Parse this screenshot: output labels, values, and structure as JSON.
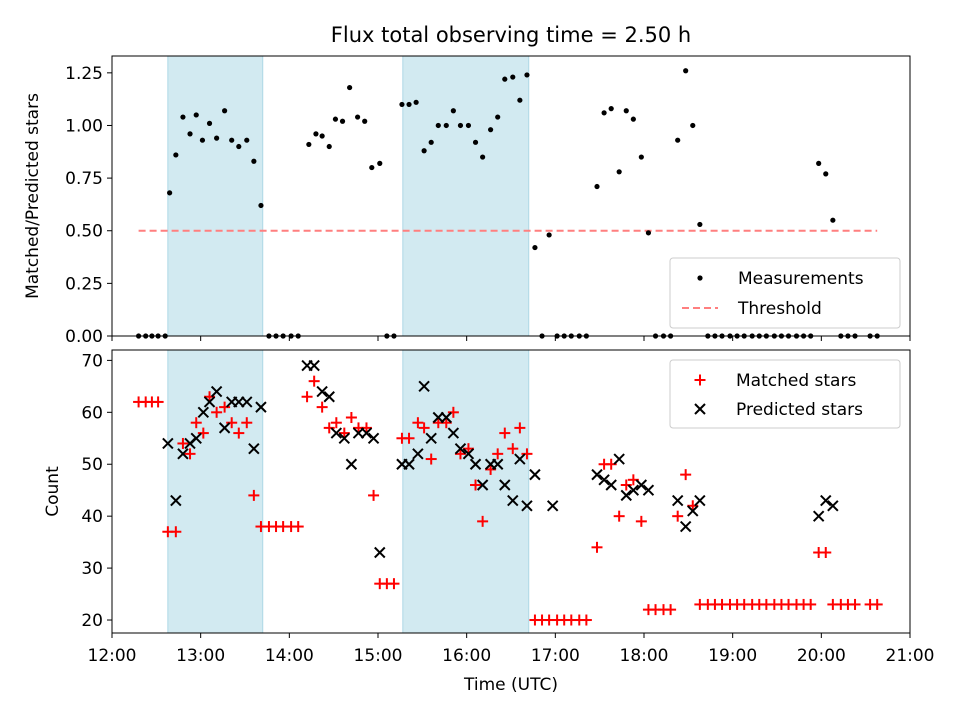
{
  "title": "Flux total observing time = 2.50 h",
  "colors": {
    "measurement": "#000000",
    "threshold": "#ff7f7f",
    "matched": "#ff0000",
    "predicted": "#000000",
    "shade": "#add8e6"
  },
  "chart_data": [
    {
      "type": "scatter",
      "ylabel": "Matched/Predicted stars",
      "xlim": [
        12.0,
        21.0
      ],
      "ylim": [
        0,
        1.33
      ],
      "yticks": [
        0,
        0.25,
        0.5,
        0.75,
        1.0,
        1.25
      ],
      "ytick_labels": [
        "0.00",
        "0.25",
        "0.50",
        "0.75",
        "1.00",
        "1.25"
      ],
      "grid": false,
      "legend_position": "lower-right",
      "shaded_spans": [
        [
          12.63,
          13.7
        ],
        [
          15.28,
          16.7
        ]
      ],
      "series": [
        {
          "name": "Measurements",
          "marker": "dot",
          "points": [
            [
              12.3,
              0
            ],
            [
              12.38,
              0
            ],
            [
              12.45,
              0
            ],
            [
              12.52,
              0
            ],
            [
              12.6,
              0
            ],
            [
              12.65,
              0.68
            ],
            [
              12.72,
              0.86
            ],
            [
              12.8,
              1.04
            ],
            [
              12.88,
              0.96
            ],
            [
              12.95,
              1.05
            ],
            [
              13.02,
              0.93
            ],
            [
              13.1,
              1.01
            ],
            [
              13.18,
              0.94
            ],
            [
              13.27,
              1.07
            ],
            [
              13.35,
              0.93
            ],
            [
              13.43,
              0.9
            ],
            [
              13.52,
              0.93
            ],
            [
              13.6,
              0.83
            ],
            [
              13.68,
              0.62
            ],
            [
              13.77,
              0
            ],
            [
              13.85,
              0
            ],
            [
              13.93,
              0
            ],
            [
              14.02,
              0
            ],
            [
              14.1,
              0
            ],
            [
              14.22,
              0.91
            ],
            [
              14.3,
              0.96
            ],
            [
              14.37,
              0.95
            ],
            [
              14.45,
              0.9
            ],
            [
              14.52,
              1.03
            ],
            [
              14.6,
              1.02
            ],
            [
              14.68,
              1.18
            ],
            [
              14.77,
              1.04
            ],
            [
              14.85,
              1.02
            ],
            [
              14.93,
              0.8
            ],
            [
              15.02,
              0.82
            ],
            [
              15.1,
              0
            ],
            [
              15.18,
              0
            ],
            [
              15.27,
              1.1
            ],
            [
              15.35,
              1.1
            ],
            [
              15.43,
              1.11
            ],
            [
              15.52,
              0.88
            ],
            [
              15.6,
              0.92
            ],
            [
              15.68,
              1.0
            ],
            [
              15.77,
              1.0
            ],
            [
              15.85,
              1.07
            ],
            [
              15.93,
              1.0
            ],
            [
              16.02,
              1.0
            ],
            [
              16.1,
              0.92
            ],
            [
              16.18,
              0.85
            ],
            [
              16.27,
              0.98
            ],
            [
              16.35,
              1.04
            ],
            [
              16.43,
              1.22
            ],
            [
              16.52,
              1.23
            ],
            [
              16.6,
              1.12
            ],
            [
              16.68,
              1.24
            ],
            [
              16.77,
              0.42
            ],
            [
              16.85,
              0
            ],
            [
              16.93,
              0.48
            ],
            [
              17.02,
              0
            ],
            [
              17.1,
              0
            ],
            [
              17.18,
              0
            ],
            [
              17.27,
              0
            ],
            [
              17.35,
              0
            ],
            [
              17.47,
              0.71
            ],
            [
              17.55,
              1.06
            ],
            [
              17.63,
              1.08
            ],
            [
              17.72,
              0.78
            ],
            [
              17.8,
              1.07
            ],
            [
              17.88,
              1.03
            ],
            [
              17.97,
              0.85
            ],
            [
              18.05,
              0.49
            ],
            [
              18.13,
              0
            ],
            [
              18.22,
              0
            ],
            [
              18.3,
              0
            ],
            [
              18.38,
              0.93
            ],
            [
              18.47,
              1.26
            ],
            [
              18.55,
              1.0
            ],
            [
              18.63,
              0.53
            ],
            [
              18.72,
              0
            ],
            [
              18.8,
              0
            ],
            [
              18.88,
              0
            ],
            [
              18.97,
              0
            ],
            [
              19.05,
              0
            ],
            [
              19.13,
              0
            ],
            [
              19.22,
              0
            ],
            [
              19.3,
              0
            ],
            [
              19.38,
              0
            ],
            [
              19.47,
              0
            ],
            [
              19.55,
              0
            ],
            [
              19.63,
              0
            ],
            [
              19.72,
              0
            ],
            [
              19.8,
              0
            ],
            [
              19.88,
              0
            ],
            [
              19.97,
              0.82
            ],
            [
              20.05,
              0.77
            ],
            [
              20.13,
              0.55
            ],
            [
              20.22,
              0
            ],
            [
              20.3,
              0
            ],
            [
              20.38,
              0
            ],
            [
              20.55,
              0
            ],
            [
              20.63,
              0
            ]
          ]
        },
        {
          "name": "Threshold",
          "marker": "dashed-line",
          "points": [
            [
              12.3,
              0.5
            ],
            [
              20.63,
              0.5
            ]
          ]
        }
      ]
    },
    {
      "type": "scatter",
      "xlabel": "Time (UTC)",
      "ylabel": "Count",
      "xlim": [
        12.0,
        21.0
      ],
      "ylim": [
        17.5,
        72
      ],
      "xticks": [
        12,
        13,
        14,
        15,
        16,
        17,
        18,
        19,
        20,
        21
      ],
      "xtick_labels": [
        "12:00",
        "13:00",
        "14:00",
        "15:00",
        "16:00",
        "17:00",
        "18:00",
        "19:00",
        "20:00",
        "21:00"
      ],
      "yticks": [
        20,
        30,
        40,
        50,
        60,
        70
      ],
      "ytick_labels": [
        "20",
        "30",
        "40",
        "50",
        "60",
        "70"
      ],
      "grid": false,
      "legend_position": "upper-right",
      "shaded_spans": [
        [
          12.63,
          13.7
        ],
        [
          15.28,
          16.7
        ]
      ],
      "series": [
        {
          "name": "Matched stars",
          "marker": "plus",
          "points": [
            [
              12.3,
              62
            ],
            [
              12.38,
              62
            ],
            [
              12.45,
              62
            ],
            [
              12.52,
              62
            ],
            [
              12.63,
              37
            ],
            [
              12.72,
              37
            ],
            [
              12.8,
              54
            ],
            [
              12.88,
              52
            ],
            [
              12.95,
              58
            ],
            [
              13.03,
              56
            ],
            [
              13.1,
              63
            ],
            [
              13.18,
              60
            ],
            [
              13.27,
              61
            ],
            [
              13.35,
              58
            ],
            [
              13.43,
              56
            ],
            [
              13.52,
              58
            ],
            [
              13.6,
              44
            ],
            [
              13.68,
              38
            ],
            [
              13.77,
              38
            ],
            [
              13.85,
              38
            ],
            [
              13.93,
              38
            ],
            [
              14.02,
              38
            ],
            [
              14.1,
              38
            ],
            [
              14.2,
              63
            ],
            [
              14.28,
              66
            ],
            [
              14.37,
              61
            ],
            [
              14.45,
              57
            ],
            [
              14.53,
              58
            ],
            [
              14.62,
              56
            ],
            [
              14.7,
              59
            ],
            [
              14.78,
              57
            ],
            [
              14.87,
              57
            ],
            [
              14.95,
              44
            ],
            [
              15.02,
              27
            ],
            [
              15.1,
              27
            ],
            [
              15.18,
              27
            ],
            [
              15.27,
              55
            ],
            [
              15.35,
              55
            ],
            [
              15.45,
              58
            ],
            [
              15.52,
              57
            ],
            [
              15.6,
              51
            ],
            [
              15.68,
              58
            ],
            [
              15.77,
              58
            ],
            [
              15.85,
              60
            ],
            [
              15.93,
              52
            ],
            [
              16.02,
              53
            ],
            [
              16.1,
              46
            ],
            [
              16.18,
              39
            ],
            [
              16.27,
              49
            ],
            [
              16.35,
              52
            ],
            [
              16.43,
              56
            ],
            [
              16.52,
              53
            ],
            [
              16.6,
              57
            ],
            [
              16.68,
              52
            ],
            [
              16.77,
              20
            ],
            [
              16.85,
              20
            ],
            [
              16.93,
              20
            ],
            [
              17.02,
              20
            ],
            [
              17.1,
              20
            ],
            [
              17.18,
              20
            ],
            [
              17.27,
              20
            ],
            [
              17.35,
              20
            ],
            [
              17.47,
              34
            ],
            [
              17.55,
              50
            ],
            [
              17.63,
              50
            ],
            [
              17.72,
              40
            ],
            [
              17.8,
              46
            ],
            [
              17.88,
              47
            ],
            [
              17.97,
              39
            ],
            [
              18.05,
              22
            ],
            [
              18.13,
              22
            ],
            [
              18.22,
              22
            ],
            [
              18.3,
              22
            ],
            [
              18.38,
              40
            ],
            [
              18.47,
              48
            ],
            [
              18.55,
              42
            ],
            [
              18.63,
              23
            ],
            [
              18.72,
              23
            ],
            [
              18.8,
              23
            ],
            [
              18.88,
              23
            ],
            [
              18.97,
              23
            ],
            [
              19.05,
              23
            ],
            [
              19.13,
              23
            ],
            [
              19.22,
              23
            ],
            [
              19.3,
              23
            ],
            [
              19.38,
              23
            ],
            [
              19.47,
              23
            ],
            [
              19.55,
              23
            ],
            [
              19.63,
              23
            ],
            [
              19.72,
              23
            ],
            [
              19.8,
              23
            ],
            [
              19.88,
              23
            ],
            [
              19.97,
              33
            ],
            [
              20.05,
              33
            ],
            [
              20.13,
              23
            ],
            [
              20.22,
              23
            ],
            [
              20.3,
              23
            ],
            [
              20.38,
              23
            ],
            [
              20.55,
              23
            ],
            [
              20.63,
              23
            ]
          ]
        },
        {
          "name": "Predicted stars",
          "marker": "x",
          "points": [
            [
              12.63,
              54
            ],
            [
              12.72,
              43
            ],
            [
              12.8,
              52
            ],
            [
              12.88,
              54
            ],
            [
              12.95,
              55
            ],
            [
              13.03,
              60
            ],
            [
              13.1,
              62
            ],
            [
              13.18,
              64
            ],
            [
              13.27,
              57
            ],
            [
              13.35,
              62
            ],
            [
              13.43,
              62
            ],
            [
              13.52,
              62
            ],
            [
              13.6,
              53
            ],
            [
              13.68,
              61
            ],
            [
              14.2,
              69
            ],
            [
              14.28,
              69
            ],
            [
              14.37,
              64
            ],
            [
              14.45,
              63
            ],
            [
              14.53,
              56
            ],
            [
              14.62,
              55
            ],
            [
              14.7,
              50
            ],
            [
              14.78,
              56
            ],
            [
              14.87,
              56
            ],
            [
              14.95,
              55
            ],
            [
              15.02,
              33
            ],
            [
              15.27,
              50
            ],
            [
              15.35,
              50
            ],
            [
              15.45,
              52
            ],
            [
              15.52,
              65
            ],
            [
              15.6,
              55
            ],
            [
              15.68,
              59
            ],
            [
              15.77,
              59
            ],
            [
              15.85,
              56
            ],
            [
              15.93,
              53
            ],
            [
              16.02,
              52
            ],
            [
              16.1,
              50
            ],
            [
              16.18,
              46
            ],
            [
              16.27,
              50
            ],
            [
              16.35,
              50
            ],
            [
              16.43,
              46
            ],
            [
              16.52,
              43
            ],
            [
              16.6,
              51
            ],
            [
              16.68,
              42
            ],
            [
              16.77,
              48
            ],
            [
              16.97,
              42
            ],
            [
              17.47,
              48
            ],
            [
              17.55,
              47
            ],
            [
              17.63,
              46
            ],
            [
              17.72,
              51
            ],
            [
              17.8,
              44
            ],
            [
              17.88,
              45
            ],
            [
              17.97,
              46
            ],
            [
              18.05,
              45
            ],
            [
              18.38,
              43
            ],
            [
              18.47,
              38
            ],
            [
              18.55,
              41
            ],
            [
              18.63,
              43
            ],
            [
              19.97,
              40
            ],
            [
              20.05,
              43
            ],
            [
              20.13,
              42
            ]
          ]
        }
      ]
    }
  ]
}
